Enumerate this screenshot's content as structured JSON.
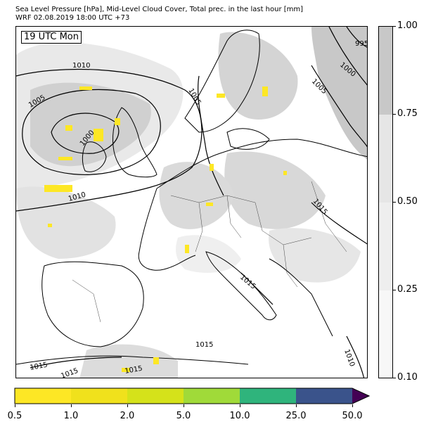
{
  "header": {
    "line1": "Sea Level Pressure [hPa], Mid-Level Cloud Cover, Total prec. in the last hour [mm]",
    "line2": "WRF 02.08.2019 18:00 UTC +73"
  },
  "map": {
    "time_label": "19 UTC Mon",
    "isobar_labels": {
      "l995": "995",
      "l1000a": "1000",
      "l1000b": "1000",
      "l1005a": "1005",
      "l1005b": "1005",
      "l1005c": "1005",
      "l1010a": "1010",
      "l1010b": "1010",
      "l1010c": "1010",
      "l1015a": "1015",
      "l1015b": "1015",
      "l1015c": "1015",
      "l1015d": "1015",
      "l1015e": "1015",
      "l1015f": "1015"
    },
    "colors": {
      "cloud_light": "#f4f4f4",
      "cloud_mid": "#e6e6e6",
      "cloud_dark": "#c8c8c8",
      "precip": "#fde725",
      "coast": "#000000"
    }
  },
  "cloud_colorbar": {
    "labels": [
      "1.00",
      "0.75",
      "0.50",
      "0.25",
      "0.10"
    ],
    "colors": [
      "#c8c8c8",
      "#e6e6e6",
      "#eeeeee",
      "#f7f7f7"
    ]
  },
  "precip_colorbar": {
    "labels": [
      "0.5",
      "1.0",
      "2.0",
      "5.0",
      "10.0",
      "25.0",
      "50.0"
    ],
    "colors": [
      "#fde725",
      "#f0e11c",
      "#d5e21a",
      "#a0da39",
      "#2fb47c",
      "#3a538b",
      "#440154"
    ]
  }
}
